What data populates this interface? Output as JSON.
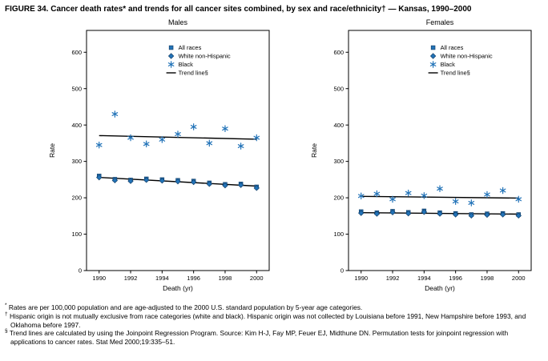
{
  "figure": {
    "title": "FIGURE 34. Cancer death rates* and trends for all cancer sites combined, by sex and race/ethnicity† — Kansas, 1990–2000"
  },
  "footnotes": [
    {
      "marker": "*",
      "text": "Rates are per 100,000 population and are age-adjusted to the 2000 U.S. standard population by 5-year age categories."
    },
    {
      "marker": "†",
      "text": "Hispanic origin is not mutually exclusive from race categories (white and black). Hispanic origin was not collected by Louisiana before 1991, New Hampshire before 1993, and Oklahoma before 1997."
    },
    {
      "marker": "§",
      "text": "Trend lines are calculated by using the Joinpoint Regression Program. Source: Kim H-J, Fay MP, Feuer EJ, Midthune DN. Permutation tests for joinpoint regression with applications to cancer rates. Stat Med 2000;19:335–51."
    }
  ],
  "colors": {
    "marker_fill": "#2273b8",
    "marker_stroke": "#14416b",
    "trend_line": "#000000",
    "frame": "#000000"
  },
  "chart_data": [
    {
      "type": "scatter",
      "title": "Males",
      "xlabel": "Death (yr)",
      "ylabel": "Rate",
      "xlim": [
        1989.2,
        2000.8
      ],
      "ylim": [
        0,
        660
      ],
      "xticks": [
        1990,
        1992,
        1994,
        1996,
        1998,
        2000
      ],
      "yticks": [
        0,
        100,
        200,
        300,
        400,
        500,
        600
      ],
      "grid": false,
      "legend_position": "upper center-right",
      "x": [
        1990,
        1991,
        1992,
        1993,
        1994,
        1995,
        1996,
        1997,
        1998,
        1999,
        2000
      ],
      "series": [
        {
          "name": "All races",
          "marker": "square",
          "values": [
            260,
            251,
            249,
            252,
            250,
            248,
            246,
            241,
            237,
            238,
            230
          ]
        },
        {
          "name": "White non-Hispanic",
          "marker": "diamond",
          "values": [
            256,
            248,
            246,
            249,
            247,
            245,
            243,
            238,
            234,
            235,
            227
          ]
        },
        {
          "name": "Black",
          "marker": "asterisk",
          "values": [
            345,
            430,
            365,
            348,
            360,
            375,
            395,
            350,
            390,
            342,
            365
          ]
        }
      ],
      "trend_lines": [
        {
          "series": "All races / White non-Hispanic",
          "points": [
            [
              1990,
              256
            ],
            [
              2000,
              232
            ]
          ]
        },
        {
          "series": "Black",
          "points": [
            [
              1990,
              371
            ],
            [
              2000,
              361
            ]
          ]
        }
      ],
      "legend": [
        {
          "label": "All races",
          "marker": "square"
        },
        {
          "label": "White non-Hispanic",
          "marker": "diamond"
        },
        {
          "label": "Black",
          "marker": "asterisk"
        },
        {
          "label": "Trend line§",
          "marker": "line"
        }
      ]
    },
    {
      "type": "scatter",
      "title": "Females",
      "xlabel": "Death (yr)",
      "ylabel": "Rate",
      "xlim": [
        1989.2,
        2000.8
      ],
      "ylim": [
        0,
        660
      ],
      "xticks": [
        1990,
        1992,
        1994,
        1996,
        1998,
        2000
      ],
      "yticks": [
        0,
        100,
        200,
        300,
        400,
        500,
        600
      ],
      "grid": false,
      "legend_position": "upper center-right",
      "x": [
        1990,
        1991,
        1992,
        1993,
        1994,
        1995,
        1996,
        1997,
        1998,
        1999,
        2000
      ],
      "series": [
        {
          "name": "All races",
          "marker": "square",
          "values": [
            162,
            159,
            163,
            160,
            164,
            159,
            157,
            154,
            156,
            157,
            154
          ]
        },
        {
          "name": "White non-Hispanic",
          "marker": "diamond",
          "values": [
            158,
            156,
            160,
            157,
            161,
            156,
            154,
            151,
            153,
            154,
            151
          ]
        },
        {
          "name": "Black",
          "marker": "asterisk",
          "values": [
            205,
            211,
            196,
            213,
            206,
            225,
            190,
            186,
            209,
            220,
            196
          ]
        }
      ],
      "trend_lines": [
        {
          "series": "All races / White non-Hispanic",
          "points": [
            [
              1990,
              159
            ],
            [
              2000,
              155
            ]
          ]
        },
        {
          "series": "Black",
          "points": [
            [
              1990,
              204
            ],
            [
              2000,
              199
            ]
          ]
        }
      ],
      "legend": [
        {
          "label": "All races",
          "marker": "square"
        },
        {
          "label": "White non-Hispanic",
          "marker": "diamond"
        },
        {
          "label": "Black",
          "marker": "asterisk"
        },
        {
          "label": "Trend line§",
          "marker": "line"
        }
      ]
    }
  ]
}
